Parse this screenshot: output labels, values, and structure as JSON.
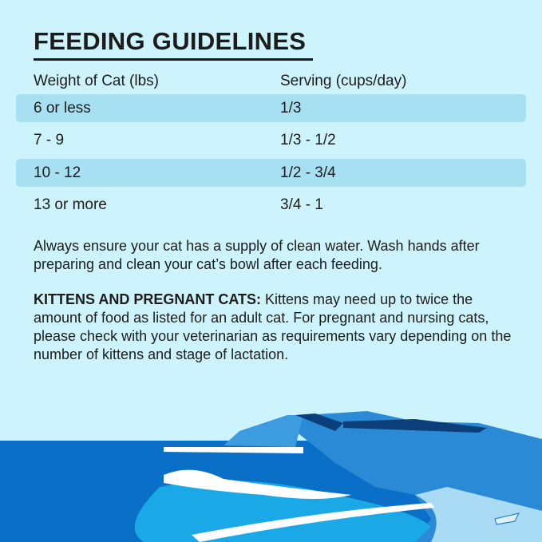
{
  "title": "FEEDING GUIDELINES",
  "table": {
    "headers": [
      "Weight of Cat (lbs)",
      "Serving (cups/day)"
    ],
    "rows": [
      {
        "weight": "6 or less",
        "serving": "1/3"
      },
      {
        "weight": "7 - 9",
        "serving": "1/3 - 1/2"
      },
      {
        "weight": "10 - 12",
        "serving": "1/2 - 3/4"
      },
      {
        "weight": "13 or more",
        "serving": "3/4 - 1"
      }
    ]
  },
  "notes": {
    "water": "Always ensure your cat has a supply of clean water. Wash hands after preparing and clean your cat’s bowl after each feeding.",
    "kittens_label": "KITTENS AND PREGNANT CATS:",
    "kittens_text": " Kittens may need up to twice the amount of food as listed for an adult cat. For pregnant and nursing cats, please check with your veterinarian as requirements vary depending on the number of kittens and stage of lactation."
  },
  "colors": {
    "background": "#cdf3fc",
    "row_highlight": "#a6e0f2",
    "text": "#1c1c1c",
    "sea": "#0a6fc6",
    "shallow": "#1aa8e6"
  }
}
